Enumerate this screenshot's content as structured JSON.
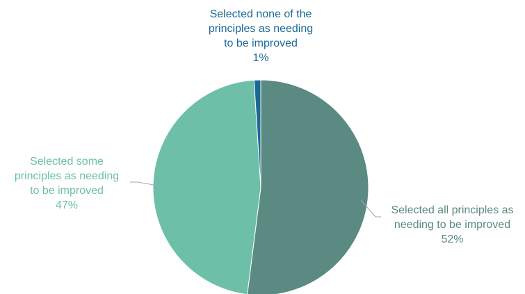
{
  "chart_data": {
    "type": "pie",
    "slices": [
      {
        "category": "Selected all principles as needing to be improved",
        "value": 52,
        "value_label": "52%",
        "label_lines": [
          "Selected all principles as",
          "needing to be improved"
        ],
        "color": "#5a8a82",
        "label_color": "#5a8a82"
      },
      {
        "category": "Selected some principles as needing to be improved",
        "value": 47,
        "value_label": "47%",
        "label_lines": [
          "Selected some",
          "principles as needing",
          "to be improved"
        ],
        "color": "#6dbfa8",
        "label_color": "#6dbfa8"
      },
      {
        "category": "Selected none of the principles as needing to be improved",
        "value": 1,
        "value_label": "1%",
        "label_lines": [
          "Selected none of the",
          "principles as needing",
          "to be improved"
        ],
        "color": "#1a6a96",
        "label_color": "#1a6a96"
      }
    ],
    "leader_line_color": "#a6a6a6"
  }
}
